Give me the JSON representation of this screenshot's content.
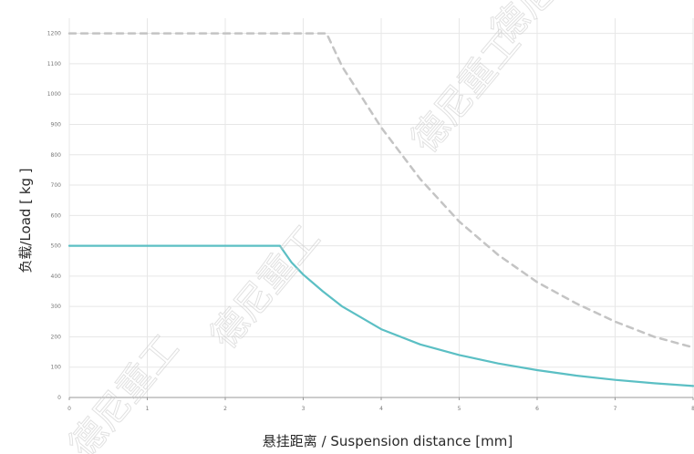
{
  "chart_data": {
    "type": "line",
    "xlabel": "悬挂距离 / Suspension distance [mm]",
    "ylabel": "负载/Load [ kg ]",
    "xlim": [
      0,
      8
    ],
    "ylim": [
      0,
      1250
    ],
    "x_ticks": [
      "0",
      "1",
      "2",
      "3",
      "4",
      "5",
      "6",
      "7",
      "8"
    ],
    "y_ticks": [
      "0",
      "100",
      "200",
      "300",
      "400",
      "500",
      "600",
      "700",
      "800",
      "900",
      "1000",
      "1100",
      "1200"
    ],
    "grid": true,
    "series": [
      {
        "style": "solid",
        "color": "#5bbfc4",
        "x": [
          0,
          1,
          2,
          2.7,
          2.85,
          3,
          3.25,
          3.5,
          4,
          4.5,
          5,
          5.5,
          6,
          6.5,
          7,
          7.5,
          8
        ],
        "y": [
          500,
          500,
          500,
          500,
          445,
          405,
          350,
          300,
          225,
          175,
          140,
          112,
          90,
          72,
          58,
          47,
          38
        ]
      },
      {
        "style": "dashed",
        "color": "#c4c4c4",
        "x": [
          0,
          1,
          2,
          3,
          3.3,
          3.5,
          4,
          4.5,
          5,
          5.5,
          6,
          6.5,
          7,
          7.5,
          8
        ],
        "y": [
          1200,
          1200,
          1200,
          1200,
          1200,
          1090,
          890,
          720,
          580,
          470,
          380,
          310,
          250,
          200,
          165
        ]
      }
    ]
  },
  "watermark": "德尼重工"
}
